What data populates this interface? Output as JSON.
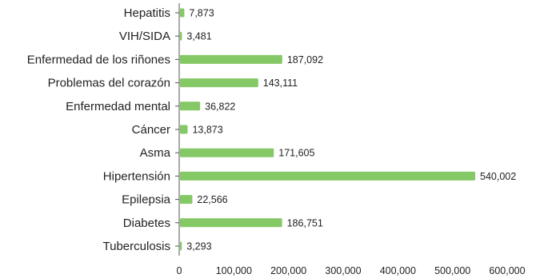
{
  "chart_data": {
    "type": "bar",
    "orientation": "horizontal",
    "categories": [
      "Hepatitis",
      "VIH/SIDA",
      "Enfermedad de los riñones",
      "Problemas del corazón",
      "Enfermedad mental",
      "Cáncer",
      "Asma",
      "Hipertensión",
      "Epilepsia",
      "Diabetes",
      "Tuberculosis"
    ],
    "values": [
      7873,
      3481,
      187092,
      143111,
      36822,
      13873,
      171605,
      540002,
      22566,
      186751,
      3293
    ],
    "value_labels": [
      "7,873",
      "3,481",
      "187,092",
      "143,111",
      "36,822",
      "13,873",
      "171,605",
      "540,002",
      "22,566",
      "186,751",
      "3,293"
    ],
    "xticks": [
      0,
      100000,
      200000,
      300000,
      400000,
      500000,
      600000
    ],
    "xtick_labels": [
      "0",
      "100,000",
      "200,000",
      "300,000",
      "400,000",
      "500,000",
      "600,000"
    ],
    "xlim": [
      0,
      600000
    ],
    "title": "",
    "xlabel": "",
    "ylabel": "",
    "grid": false,
    "legend": "none",
    "bar_color": "#85c866",
    "axis_color": "#555555",
    "text_color": "#222222"
  }
}
